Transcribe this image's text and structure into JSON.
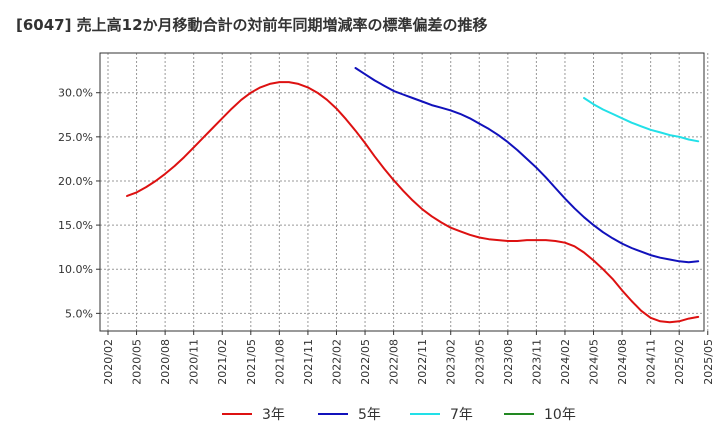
{
  "chart_data": {
    "type": "line",
    "title": "[6047]  売上高12か月移動合計の対前年同期増減率の標準偏差の推移",
    "xlabel": "",
    "ylabel": "",
    "x_ticks": [
      "2020/02",
      "2020/05",
      "2020/08",
      "2020/11",
      "2021/02",
      "2021/05",
      "2021/08",
      "2021/11",
      "2022/02",
      "2022/05",
      "2022/08",
      "2022/11",
      "2023/02",
      "2023/05",
      "2023/08",
      "2023/11",
      "2024/02",
      "2024/05",
      "2024/08",
      "2024/11",
      "2025/02",
      "2025/05"
    ],
    "y_ticks": [
      "5.0%",
      "10.0%",
      "15.0%",
      "20.0%",
      "25.0%",
      "30.0%"
    ],
    "y_tick_values": [
      5,
      10,
      15,
      20,
      25,
      30
    ],
    "ylim": [
      3,
      34.5
    ],
    "grid": true,
    "legend_position": "bottom",
    "series": [
      {
        "name": "3年",
        "color": "#dd1111",
        "points": [
          [
            "2020/04",
            18.3
          ],
          [
            "2020/05",
            18.7
          ],
          [
            "2020/06",
            19.3
          ],
          [
            "2020/07",
            20.0
          ],
          [
            "2020/08",
            20.8
          ],
          [
            "2020/09",
            21.7
          ],
          [
            "2020/10",
            22.7
          ],
          [
            "2020/11",
            23.8
          ],
          [
            "2020/12",
            24.9
          ],
          [
            "2021/01",
            26.0
          ],
          [
            "2021/02",
            27.1
          ],
          [
            "2021/03",
            28.2
          ],
          [
            "2021/04",
            29.2
          ],
          [
            "2021/05",
            30.0
          ],
          [
            "2021/06",
            30.6
          ],
          [
            "2021/07",
            31.0
          ],
          [
            "2021/08",
            31.2
          ],
          [
            "2021/09",
            31.2
          ],
          [
            "2021/10",
            31.0
          ],
          [
            "2021/11",
            30.6
          ],
          [
            "2021/12",
            30.0
          ],
          [
            "2022/01",
            29.2
          ],
          [
            "2022/02",
            28.2
          ],
          [
            "2022/03",
            27.0
          ],
          [
            "2022/04",
            25.7
          ],
          [
            "2022/05",
            24.3
          ],
          [
            "2022/06",
            22.8
          ],
          [
            "2022/07",
            21.4
          ],
          [
            "2022/08",
            20.1
          ],
          [
            "2022/09",
            18.9
          ],
          [
            "2022/10",
            17.8
          ],
          [
            "2022/11",
            16.8
          ],
          [
            "2022/12",
            16.0
          ],
          [
            "2023/01",
            15.3
          ],
          [
            "2023/02",
            14.7
          ],
          [
            "2023/03",
            14.3
          ],
          [
            "2023/04",
            13.9
          ],
          [
            "2023/05",
            13.6
          ],
          [
            "2023/06",
            13.4
          ],
          [
            "2023/07",
            13.3
          ],
          [
            "2023/08",
            13.2
          ],
          [
            "2023/09",
            13.2
          ],
          [
            "2023/10",
            13.3
          ],
          [
            "2023/11",
            13.3
          ],
          [
            "2023/12",
            13.3
          ],
          [
            "2024/01",
            13.2
          ],
          [
            "2024/02",
            13.0
          ],
          [
            "2024/03",
            12.6
          ],
          [
            "2024/04",
            11.9
          ],
          [
            "2024/05",
            11.0
          ],
          [
            "2024/06",
            10.0
          ],
          [
            "2024/07",
            8.9
          ],
          [
            "2024/08",
            7.6
          ],
          [
            "2024/09",
            6.4
          ],
          [
            "2024/10",
            5.3
          ],
          [
            "2024/11",
            4.5
          ],
          [
            "2024/12",
            4.1
          ],
          [
            "2025/01",
            4.0
          ],
          [
            "2025/02",
            4.1
          ],
          [
            "2025/03",
            4.4
          ],
          [
            "2025/04",
            4.6
          ]
        ]
      },
      {
        "name": "5年",
        "color": "#1111bb",
        "points": [
          [
            "2022/04",
            32.8
          ],
          [
            "2022/05",
            32.1
          ],
          [
            "2022/06",
            31.4
          ],
          [
            "2022/07",
            30.8
          ],
          [
            "2022/08",
            30.2
          ],
          [
            "2022/09",
            29.8
          ],
          [
            "2022/10",
            29.4
          ],
          [
            "2022/11",
            29.0
          ],
          [
            "2022/12",
            28.6
          ],
          [
            "2023/01",
            28.3
          ],
          [
            "2023/02",
            28.0
          ],
          [
            "2023/03",
            27.6
          ],
          [
            "2023/04",
            27.1
          ],
          [
            "2023/05",
            26.5
          ],
          [
            "2023/06",
            25.9
          ],
          [
            "2023/07",
            25.2
          ],
          [
            "2023/08",
            24.4
          ],
          [
            "2023/09",
            23.5
          ],
          [
            "2023/10",
            22.5
          ],
          [
            "2023/11",
            21.5
          ],
          [
            "2023/12",
            20.4
          ],
          [
            "2024/01",
            19.2
          ],
          [
            "2024/02",
            18.0
          ],
          [
            "2024/03",
            16.9
          ],
          [
            "2024/04",
            15.9
          ],
          [
            "2024/05",
            15.0
          ],
          [
            "2024/06",
            14.2
          ],
          [
            "2024/07",
            13.5
          ],
          [
            "2024/08",
            12.9
          ],
          [
            "2024/09",
            12.4
          ],
          [
            "2024/10",
            12.0
          ],
          [
            "2024/11",
            11.6
          ],
          [
            "2024/12",
            11.3
          ],
          [
            "2025/01",
            11.1
          ],
          [
            "2025/02",
            10.9
          ],
          [
            "2025/03",
            10.8
          ],
          [
            "2025/04",
            10.9
          ]
        ]
      },
      {
        "name": "7年",
        "color": "#22e0e8",
        "points": [
          [
            "2024/04",
            29.4
          ],
          [
            "2024/05",
            28.7
          ],
          [
            "2024/06",
            28.1
          ],
          [
            "2024/07",
            27.6
          ],
          [
            "2024/08",
            27.1
          ],
          [
            "2024/09",
            26.6
          ],
          [
            "2024/10",
            26.2
          ],
          [
            "2024/11",
            25.8
          ],
          [
            "2024/12",
            25.5
          ],
          [
            "2025/01",
            25.2
          ],
          [
            "2025/02",
            25.0
          ],
          [
            "2025/03",
            24.7
          ],
          [
            "2025/04",
            24.5
          ]
        ]
      },
      {
        "name": "10年",
        "color": "#228822",
        "points": []
      }
    ]
  }
}
